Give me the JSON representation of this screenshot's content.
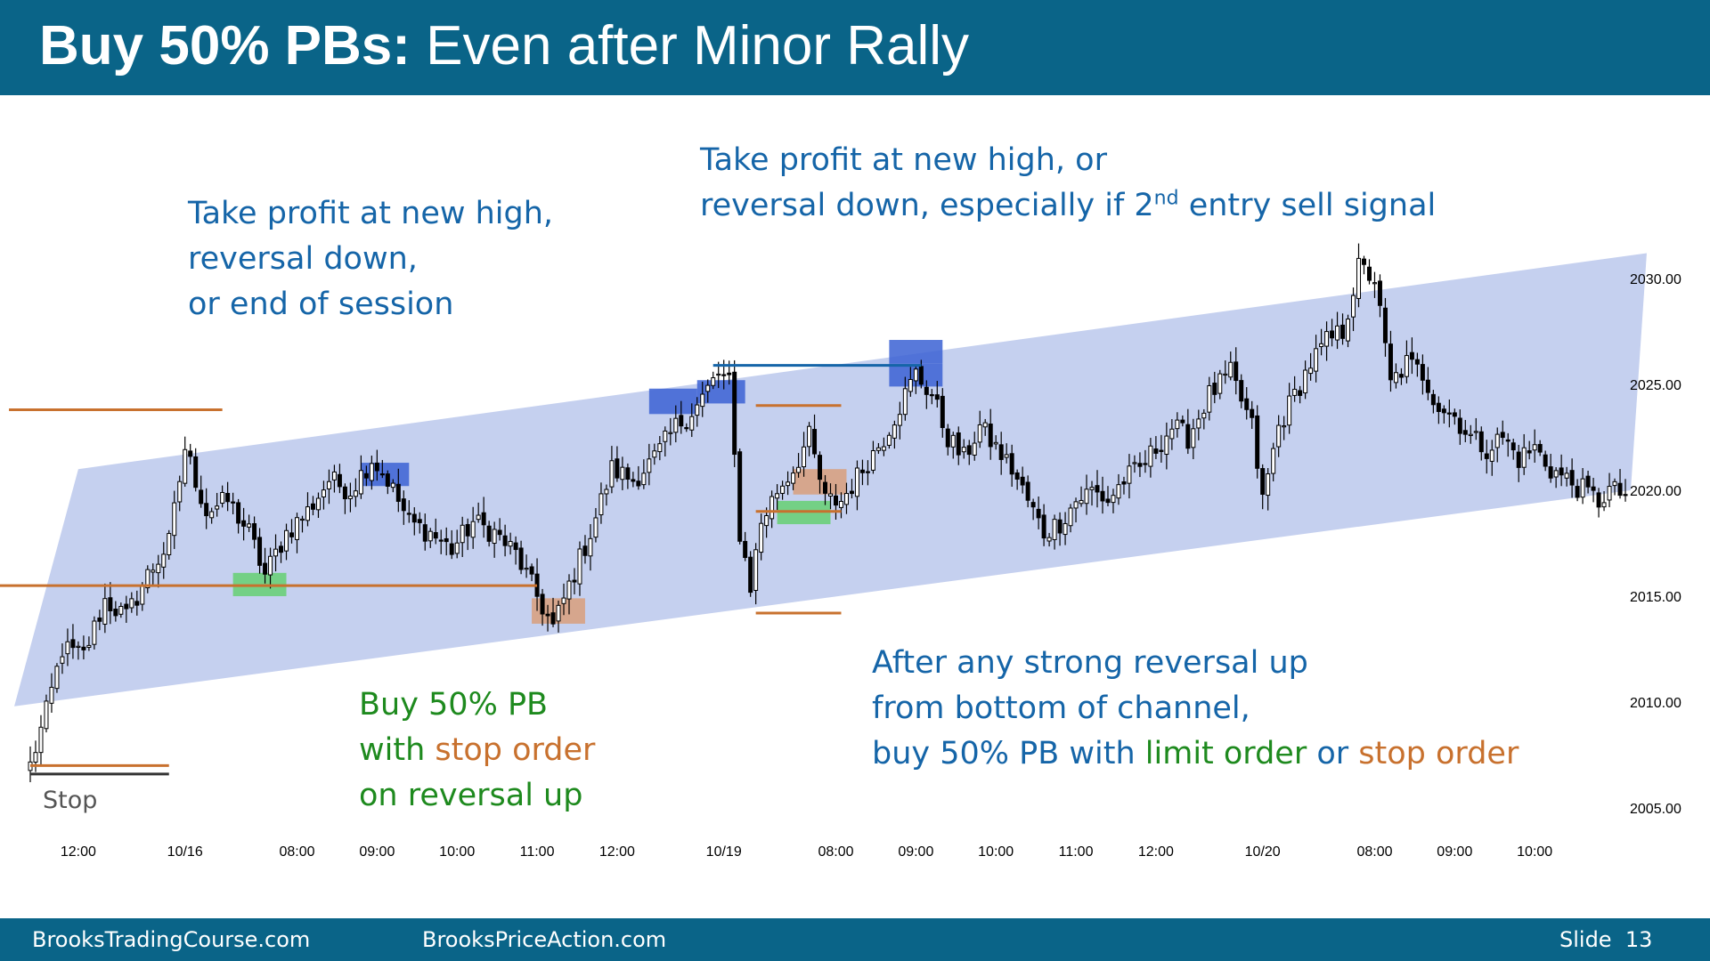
{
  "title": {
    "bold": "Buy 50% PBs:",
    "rest": " Even after Minor Rally"
  },
  "footer": {
    "left": "BrooksTradingCourse.com",
    "center": "BrooksPriceAction.com",
    "slide_label": "Slide",
    "slide_number": "13"
  },
  "annotations": {
    "a1": [
      "Take profit at new high,",
      "reversal down,",
      "or end of session"
    ],
    "a2_line1": "Take profit at new high, or",
    "a2_line2_pre": "reversal down, especially if 2",
    "a2_line2_sup": "nd",
    "a2_line2_post": " entry sell signal",
    "a3_line1": "Buy 50% PB",
    "a3_line2_pre": "with ",
    "a3_line2_orange": "stop order",
    "a3_line3": "on reversal up",
    "a4_line1": "After any strong reversal up",
    "a4_line2": "from bottom of channel,",
    "a4_line3_blue1": "buy 50% PB with ",
    "a4_line3_green": "limit order",
    "a4_line3_blue2": " or ",
    "a4_line3_orange": "stop order",
    "stop": "Stop"
  },
  "colors": {
    "header_bg": "#0a6488",
    "channel": "#c5d0ef",
    "blue_box": "#3b61d4",
    "green_box": "#5fcf6a",
    "brown_box": "#d99b74",
    "orange_line": "#c8712e",
    "up_candle": "#ffffff",
    "down_candle": "#000000"
  },
  "chart_data": {
    "type": "candlestick",
    "instrument_note": "",
    "ylim": [
      2003,
      2033
    ],
    "y_ticks": [
      2005,
      2010,
      2015,
      2020,
      2025,
      2030
    ],
    "y_tick_labels": [
      "2005.00",
      "2010.00",
      "2015.00",
      "2020.00",
      "2025.00",
      "2030.00"
    ],
    "x_tick_labels": [
      {
        "label": "12:00",
        "bar": 9
      },
      {
        "label": "10/16",
        "bar": 29
      },
      {
        "label": "08:00",
        "bar": 50
      },
      {
        "label": "09:00",
        "bar": 65
      },
      {
        "label": "10:00",
        "bar": 80
      },
      {
        "label": "11:00",
        "bar": 95
      },
      {
        "label": "12:00",
        "bar": 110
      },
      {
        "label": "10/19",
        "bar": 130
      },
      {
        "label": "08:00",
        "bar": 151
      },
      {
        "label": "09:00",
        "bar": 166
      },
      {
        "label": "10:00",
        "bar": 181
      },
      {
        "label": "11:00",
        "bar": 196
      },
      {
        "label": "12:00",
        "bar": 211
      },
      {
        "label": "10/20",
        "bar": 231
      },
      {
        "label": "08:00",
        "bar": 252
      },
      {
        "label": "09:00",
        "bar": 267
      },
      {
        "label": "10:00",
        "bar": 282
      }
    ],
    "bar_count": 300,
    "close_keypoints": [
      [
        0,
        2007.0
      ],
      [
        3,
        2009.5
      ],
      [
        6,
        2012.5
      ],
      [
        10,
        2012.2
      ],
      [
        14,
        2014.8
      ],
      [
        18,
        2014.0
      ],
      [
        22,
        2016.0
      ],
      [
        26,
        2017.5
      ],
      [
        29,
        2022.0
      ],
      [
        33,
        2019.0
      ],
      [
        37,
        2019.5
      ],
      [
        41,
        2018.0
      ],
      [
        44,
        2016.0
      ],
      [
        48,
        2018.0
      ],
      [
        52,
        2019.0
      ],
      [
        56,
        2020.5
      ],
      [
        60,
        2020.0
      ],
      [
        64,
        2021.5
      ],
      [
        67,
        2020.5
      ],
      [
        71,
        2018.5
      ],
      [
        75,
        2018.0
      ],
      [
        79,
        2017.2
      ],
      [
        83,
        2018.5
      ],
      [
        87,
        2018.0
      ],
      [
        91,
        2017.0
      ],
      [
        95,
        2015.0
      ],
      [
        98,
        2013.5
      ],
      [
        101,
        2015.5
      ],
      [
        105,
        2018.0
      ],
      [
        109,
        2021.0
      ],
      [
        113,
        2020.5
      ],
      [
        117,
        2021.5
      ],
      [
        121,
        2023.0
      ],
      [
        125,
        2024.0
      ],
      [
        129,
        2025.5
      ],
      [
        131,
        2025.0
      ],
      [
        133,
        2018.0
      ],
      [
        135,
        2015.5
      ],
      [
        137,
        2018.5
      ],
      [
        140,
        2020.0
      ],
      [
        143,
        2021.0
      ],
      [
        146,
        2022.5
      ],
      [
        149,
        2019.5
      ],
      [
        152,
        2019.5
      ],
      [
        156,
        2021.0
      ],
      [
        160,
        2022.5
      ],
      [
        163,
        2024.0
      ],
      [
        166,
        2025.5
      ],
      [
        169,
        2024.5
      ],
      [
        172,
        2022.5
      ],
      [
        175,
        2021.5
      ],
      [
        178,
        2023.0
      ],
      [
        181,
        2022.0
      ],
      [
        184,
        2021.0
      ],
      [
        187,
        2019.5
      ],
      [
        190,
        2018.0
      ],
      [
        193,
        2018.5
      ],
      [
        196,
        2019.5
      ],
      [
        199,
        2020.0
      ],
      [
        202,
        2019.5
      ],
      [
        205,
        2020.5
      ],
      [
        208,
        2021.0
      ],
      [
        211,
        2022.0
      ],
      [
        214,
        2023.0
      ],
      [
        217,
        2022.5
      ],
      [
        221,
        2024.5
      ],
      [
        225,
        2025.5
      ],
      [
        229,
        2023.0
      ],
      [
        231,
        2019.5
      ],
      [
        234,
        2023.0
      ],
      [
        237,
        2024.5
      ],
      [
        240,
        2026.0
      ],
      [
        243,
        2027.0
      ],
      [
        246,
        2027.5
      ],
      [
        249,
        2030.5
      ],
      [
        252,
        2030.0
      ],
      [
        255,
        2025.0
      ],
      [
        258,
        2026.0
      ],
      [
        261,
        2025.5
      ],
      [
        264,
        2024.0
      ],
      [
        267,
        2023.5
      ],
      [
        270,
        2022.5
      ],
      [
        273,
        2022.0
      ],
      [
        276,
        2022.5
      ],
      [
        279,
        2021.5
      ],
      [
        282,
        2022.0
      ],
      [
        285,
        2021.0
      ],
      [
        288,
        2020.5
      ],
      [
        291,
        2020.0
      ],
      [
        294,
        2019.5
      ],
      [
        296,
        2020.0
      ],
      [
        299,
        2019.8
      ]
    ],
    "channel_polygon": [
      [
        -3,
        2009.8
      ],
      [
        9,
        2021.0
      ],
      [
        303,
        2031.2
      ],
      [
        300,
        2020.0
      ]
    ],
    "horizontal_lines": [
      {
        "color": "orange",
        "from": -4,
        "to": 36,
        "y": 2023.8
      },
      {
        "color": "orange",
        "from": -6,
        "to": 95,
        "y": 2015.5
      },
      {
        "color": "orange",
        "from": 0,
        "to": 26,
        "y": 2007.0
      },
      {
        "color": "dark",
        "from": 0,
        "to": 26,
        "y": 2006.6
      },
      {
        "color": "orange",
        "from": 136,
        "to": 152,
        "y": 2024.0
      },
      {
        "color": "orange",
        "from": 136,
        "to": 152,
        "y": 2019.0
      },
      {
        "color": "orange",
        "from": 136,
        "to": 152,
        "y": 2014.2
      },
      {
        "color": "blue",
        "from": 128,
        "to": 167,
        "y": 2025.9
      }
    ],
    "highlight_boxes": [
      {
        "color": "blue",
        "x0": 62,
        "x1": 71,
        "y0": 2020.2,
        "y1": 2021.3
      },
      {
        "color": "blue",
        "x0": 116,
        "x1": 125,
        "y0": 2023.6,
        "y1": 2024.8
      },
      {
        "color": "blue",
        "x0": 125,
        "x1": 134,
        "y0": 2024.1,
        "y1": 2025.2
      },
      {
        "color": "blue",
        "x0": 161,
        "x1": 171,
        "y0": 2026.0,
        "y1": 2027.1
      },
      {
        "color": "blue",
        "x0": 161,
        "x1": 171,
        "y0": 2024.9,
        "y1": 2026.0
      },
      {
        "color": "green",
        "x0": 38,
        "x1": 48,
        "y0": 2015.0,
        "y1": 2016.1
      },
      {
        "color": "green",
        "x0": 140,
        "x1": 150,
        "y0": 2018.4,
        "y1": 2019.5
      },
      {
        "color": "brown",
        "x0": 94,
        "x1": 104,
        "y0": 2013.7,
        "y1": 2014.9
      },
      {
        "color": "brown",
        "x0": 143,
        "x1": 153,
        "y0": 2019.8,
        "y1": 2021.0
      }
    ]
  }
}
